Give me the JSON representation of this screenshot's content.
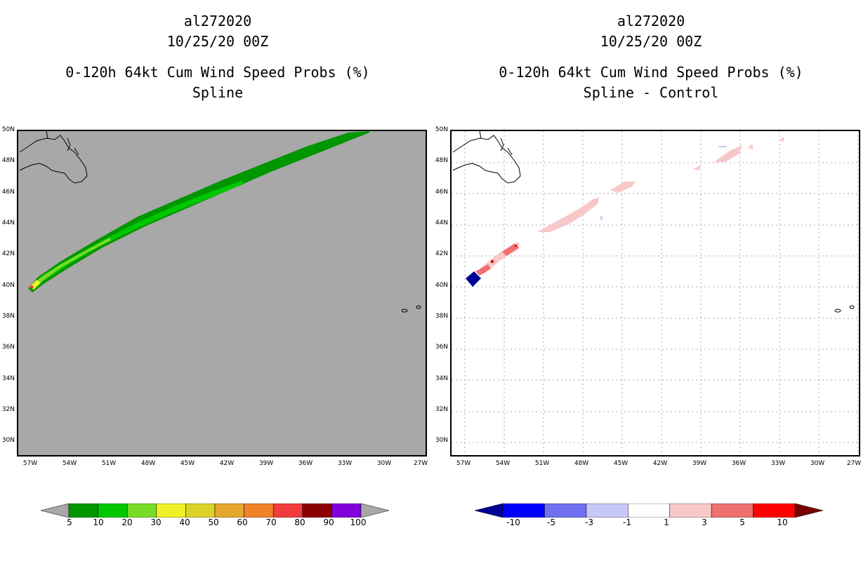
{
  "left_panel": {
    "title_lines": [
      "al272020",
      "10/25/20 00Z",
      "0-120h 64kt Cum Wind Speed Probs (%)",
      "Spline"
    ],
    "background": "#a8a8a8"
  },
  "right_panel": {
    "title_lines": [
      "al272020",
      "10/25/20 00Z",
      "0-120h 64kt Cum Wind Speed Probs (%)",
      "Spline - Control"
    ],
    "background": "#ffffff"
  },
  "lat_labels": [
    "50N",
    "48N",
    "46N",
    "44N",
    "42N",
    "40N",
    "38N",
    "36N",
    "34N",
    "32N",
    "30N"
  ],
  "lon_labels": [
    "57W",
    "54W",
    "51W",
    "48W",
    "45W",
    "42W",
    "39W",
    "36W",
    "33W",
    "30W",
    "27W"
  ],
  "left_colorbar": {
    "labels": [
      "5",
      "10",
      "20",
      "30",
      "40",
      "50",
      "60",
      "70",
      "80",
      "90",
      "100"
    ],
    "colors": [
      "#009600",
      "#00c800",
      "#78dc28",
      "#f0f028",
      "#dcd228",
      "#e6a82d",
      "#f08228",
      "#f03c3c",
      "#8c0000",
      "#8200dc"
    ],
    "end_color": "#a8a8a8"
  },
  "right_colorbar": {
    "labels": [
      "-10",
      "-5",
      "-3",
      "-1",
      "1",
      "3",
      "5",
      "10"
    ],
    "colors": [
      "#0000ff",
      "#7070f0",
      "#c8c8f8",
      "#ffffff",
      "#f8c8c8",
      "#f07070",
      "#ff0000"
    ],
    "low_end_color": "#000096",
    "high_end_color": "#780000"
  }
}
